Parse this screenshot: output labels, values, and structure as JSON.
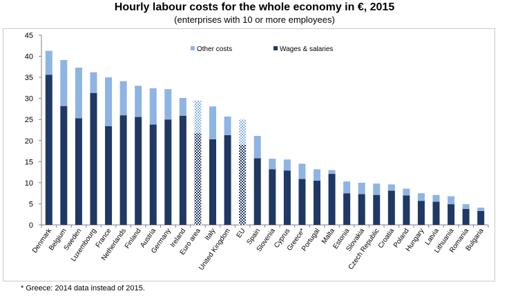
{
  "title": "Hourly labour costs for the whole economy in €, 2015",
  "subtitle": "(enterprises with 10 or more employees)",
  "footnote": "* Greece: 2014 data instead of 2015.",
  "colors": {
    "other_costs": "#8eb4e3",
    "wages_salaries": "#1f3864",
    "axis": "#7f7f7f"
  },
  "chart_data": {
    "type": "bar",
    "stacked": true,
    "title": "Hourly labour costs for the whole economy in €, 2015",
    "subtitle": "(enterprises with 10 or more employees)",
    "ylim": [
      0,
      45
    ],
    "yticks": [
      0,
      5,
      10,
      15,
      20,
      25,
      30,
      35,
      40,
      45
    ],
    "grid": false,
    "legend_position": "top",
    "categories": [
      "Denmark",
      "Belgium",
      "Sweden",
      "Luxembourg",
      "France",
      "Netherlands",
      "Finland",
      "Austria",
      "Germany",
      "Ireland",
      "Euro area",
      "Italy",
      "United Kingdom",
      "EU",
      "Spain",
      "Slovenia",
      "Cyprus",
      "Greece*",
      "Portugal",
      "Malta",
      "Estonia",
      "Slovakia",
      "Czech Republic",
      "Croatia",
      "Poland",
      "Hungary",
      "Latvia",
      "Lithuania",
      "Romania",
      "Bulgaria"
    ],
    "highlighted": [
      "Euro area",
      "EU"
    ],
    "series": [
      {
        "name": "Wages & salaries",
        "values": [
          35.6,
          28.2,
          25.3,
          31.3,
          23.4,
          26.0,
          25.6,
          23.8,
          25.0,
          25.9,
          21.8,
          20.3,
          21.3,
          19.0,
          15.8,
          13.2,
          12.9,
          10.9,
          10.5,
          12.1,
          7.5,
          7.3,
          7.1,
          8.1,
          7.0,
          5.7,
          5.5,
          4.9,
          3.8,
          3.3
        ]
      },
      {
        "name": "Other costs",
        "values": [
          5.7,
          10.9,
          12.0,
          4.9,
          11.6,
          8.1,
          7.4,
          8.6,
          7.2,
          4.2,
          7.7,
          7.8,
          4.4,
          6.0,
          5.3,
          2.5,
          2.6,
          3.6,
          2.7,
          0.9,
          2.8,
          2.7,
          2.7,
          1.5,
          1.6,
          1.8,
          1.6,
          1.9,
          1.1,
          0.8
        ]
      }
    ]
  }
}
